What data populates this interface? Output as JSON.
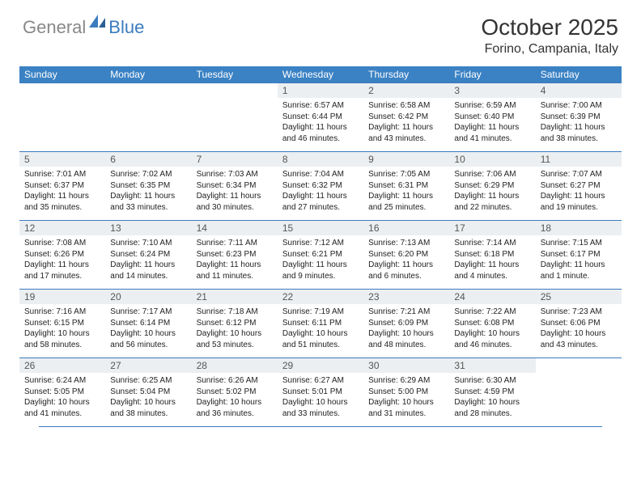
{
  "logo": {
    "text1": "General",
    "text2": "Blue"
  },
  "title": "October 2025",
  "location": "Forino, Campania, Italy",
  "colors": {
    "header_bg": "#3b82c4",
    "header_text": "#ffffff",
    "rule": "#3b7bbf",
    "daynum_bg": "#eceff1",
    "logo_gray": "#888888",
    "logo_blue": "#3b7bbf"
  },
  "weekdays": [
    "Sunday",
    "Monday",
    "Tuesday",
    "Wednesday",
    "Thursday",
    "Friday",
    "Saturday"
  ],
  "weeks": [
    [
      {
        "blank": true
      },
      {
        "blank": true
      },
      {
        "blank": true
      },
      {
        "day": "1",
        "sunrise": "Sunrise: 6:57 AM",
        "sunset": "Sunset: 6:44 PM",
        "dl1": "Daylight: 11 hours",
        "dl2": "and 46 minutes."
      },
      {
        "day": "2",
        "sunrise": "Sunrise: 6:58 AM",
        "sunset": "Sunset: 6:42 PM",
        "dl1": "Daylight: 11 hours",
        "dl2": "and 43 minutes."
      },
      {
        "day": "3",
        "sunrise": "Sunrise: 6:59 AM",
        "sunset": "Sunset: 6:40 PM",
        "dl1": "Daylight: 11 hours",
        "dl2": "and 41 minutes."
      },
      {
        "day": "4",
        "sunrise": "Sunrise: 7:00 AM",
        "sunset": "Sunset: 6:39 PM",
        "dl1": "Daylight: 11 hours",
        "dl2": "and 38 minutes."
      }
    ],
    [
      {
        "day": "5",
        "sunrise": "Sunrise: 7:01 AM",
        "sunset": "Sunset: 6:37 PM",
        "dl1": "Daylight: 11 hours",
        "dl2": "and 35 minutes."
      },
      {
        "day": "6",
        "sunrise": "Sunrise: 7:02 AM",
        "sunset": "Sunset: 6:35 PM",
        "dl1": "Daylight: 11 hours",
        "dl2": "and 33 minutes."
      },
      {
        "day": "7",
        "sunrise": "Sunrise: 7:03 AM",
        "sunset": "Sunset: 6:34 PM",
        "dl1": "Daylight: 11 hours",
        "dl2": "and 30 minutes."
      },
      {
        "day": "8",
        "sunrise": "Sunrise: 7:04 AM",
        "sunset": "Sunset: 6:32 PM",
        "dl1": "Daylight: 11 hours",
        "dl2": "and 27 minutes."
      },
      {
        "day": "9",
        "sunrise": "Sunrise: 7:05 AM",
        "sunset": "Sunset: 6:31 PM",
        "dl1": "Daylight: 11 hours",
        "dl2": "and 25 minutes."
      },
      {
        "day": "10",
        "sunrise": "Sunrise: 7:06 AM",
        "sunset": "Sunset: 6:29 PM",
        "dl1": "Daylight: 11 hours",
        "dl2": "and 22 minutes."
      },
      {
        "day": "11",
        "sunrise": "Sunrise: 7:07 AM",
        "sunset": "Sunset: 6:27 PM",
        "dl1": "Daylight: 11 hours",
        "dl2": "and 19 minutes."
      }
    ],
    [
      {
        "day": "12",
        "sunrise": "Sunrise: 7:08 AM",
        "sunset": "Sunset: 6:26 PM",
        "dl1": "Daylight: 11 hours",
        "dl2": "and 17 minutes."
      },
      {
        "day": "13",
        "sunrise": "Sunrise: 7:10 AM",
        "sunset": "Sunset: 6:24 PM",
        "dl1": "Daylight: 11 hours",
        "dl2": "and 14 minutes."
      },
      {
        "day": "14",
        "sunrise": "Sunrise: 7:11 AM",
        "sunset": "Sunset: 6:23 PM",
        "dl1": "Daylight: 11 hours",
        "dl2": "and 11 minutes."
      },
      {
        "day": "15",
        "sunrise": "Sunrise: 7:12 AM",
        "sunset": "Sunset: 6:21 PM",
        "dl1": "Daylight: 11 hours",
        "dl2": "and 9 minutes."
      },
      {
        "day": "16",
        "sunrise": "Sunrise: 7:13 AM",
        "sunset": "Sunset: 6:20 PM",
        "dl1": "Daylight: 11 hours",
        "dl2": "and 6 minutes."
      },
      {
        "day": "17",
        "sunrise": "Sunrise: 7:14 AM",
        "sunset": "Sunset: 6:18 PM",
        "dl1": "Daylight: 11 hours",
        "dl2": "and 4 minutes."
      },
      {
        "day": "18",
        "sunrise": "Sunrise: 7:15 AM",
        "sunset": "Sunset: 6:17 PM",
        "dl1": "Daylight: 11 hours",
        "dl2": "and 1 minute."
      }
    ],
    [
      {
        "day": "19",
        "sunrise": "Sunrise: 7:16 AM",
        "sunset": "Sunset: 6:15 PM",
        "dl1": "Daylight: 10 hours",
        "dl2": "and 58 minutes."
      },
      {
        "day": "20",
        "sunrise": "Sunrise: 7:17 AM",
        "sunset": "Sunset: 6:14 PM",
        "dl1": "Daylight: 10 hours",
        "dl2": "and 56 minutes."
      },
      {
        "day": "21",
        "sunrise": "Sunrise: 7:18 AM",
        "sunset": "Sunset: 6:12 PM",
        "dl1": "Daylight: 10 hours",
        "dl2": "and 53 minutes."
      },
      {
        "day": "22",
        "sunrise": "Sunrise: 7:19 AM",
        "sunset": "Sunset: 6:11 PM",
        "dl1": "Daylight: 10 hours",
        "dl2": "and 51 minutes."
      },
      {
        "day": "23",
        "sunrise": "Sunrise: 7:21 AM",
        "sunset": "Sunset: 6:09 PM",
        "dl1": "Daylight: 10 hours",
        "dl2": "and 48 minutes."
      },
      {
        "day": "24",
        "sunrise": "Sunrise: 7:22 AM",
        "sunset": "Sunset: 6:08 PM",
        "dl1": "Daylight: 10 hours",
        "dl2": "and 46 minutes."
      },
      {
        "day": "25",
        "sunrise": "Sunrise: 7:23 AM",
        "sunset": "Sunset: 6:06 PM",
        "dl1": "Daylight: 10 hours",
        "dl2": "and 43 minutes."
      }
    ],
    [
      {
        "day": "26",
        "sunrise": "Sunrise: 6:24 AM",
        "sunset": "Sunset: 5:05 PM",
        "dl1": "Daylight: 10 hours",
        "dl2": "and 41 minutes."
      },
      {
        "day": "27",
        "sunrise": "Sunrise: 6:25 AM",
        "sunset": "Sunset: 5:04 PM",
        "dl1": "Daylight: 10 hours",
        "dl2": "and 38 minutes."
      },
      {
        "day": "28",
        "sunrise": "Sunrise: 6:26 AM",
        "sunset": "Sunset: 5:02 PM",
        "dl1": "Daylight: 10 hours",
        "dl2": "and 36 minutes."
      },
      {
        "day": "29",
        "sunrise": "Sunrise: 6:27 AM",
        "sunset": "Sunset: 5:01 PM",
        "dl1": "Daylight: 10 hours",
        "dl2": "and 33 minutes."
      },
      {
        "day": "30",
        "sunrise": "Sunrise: 6:29 AM",
        "sunset": "Sunset: 5:00 PM",
        "dl1": "Daylight: 10 hours",
        "dl2": "and 31 minutes."
      },
      {
        "day": "31",
        "sunrise": "Sunrise: 6:30 AM",
        "sunset": "Sunset: 4:59 PM",
        "dl1": "Daylight: 10 hours",
        "dl2": "and 28 minutes."
      },
      {
        "blank": true
      }
    ]
  ]
}
